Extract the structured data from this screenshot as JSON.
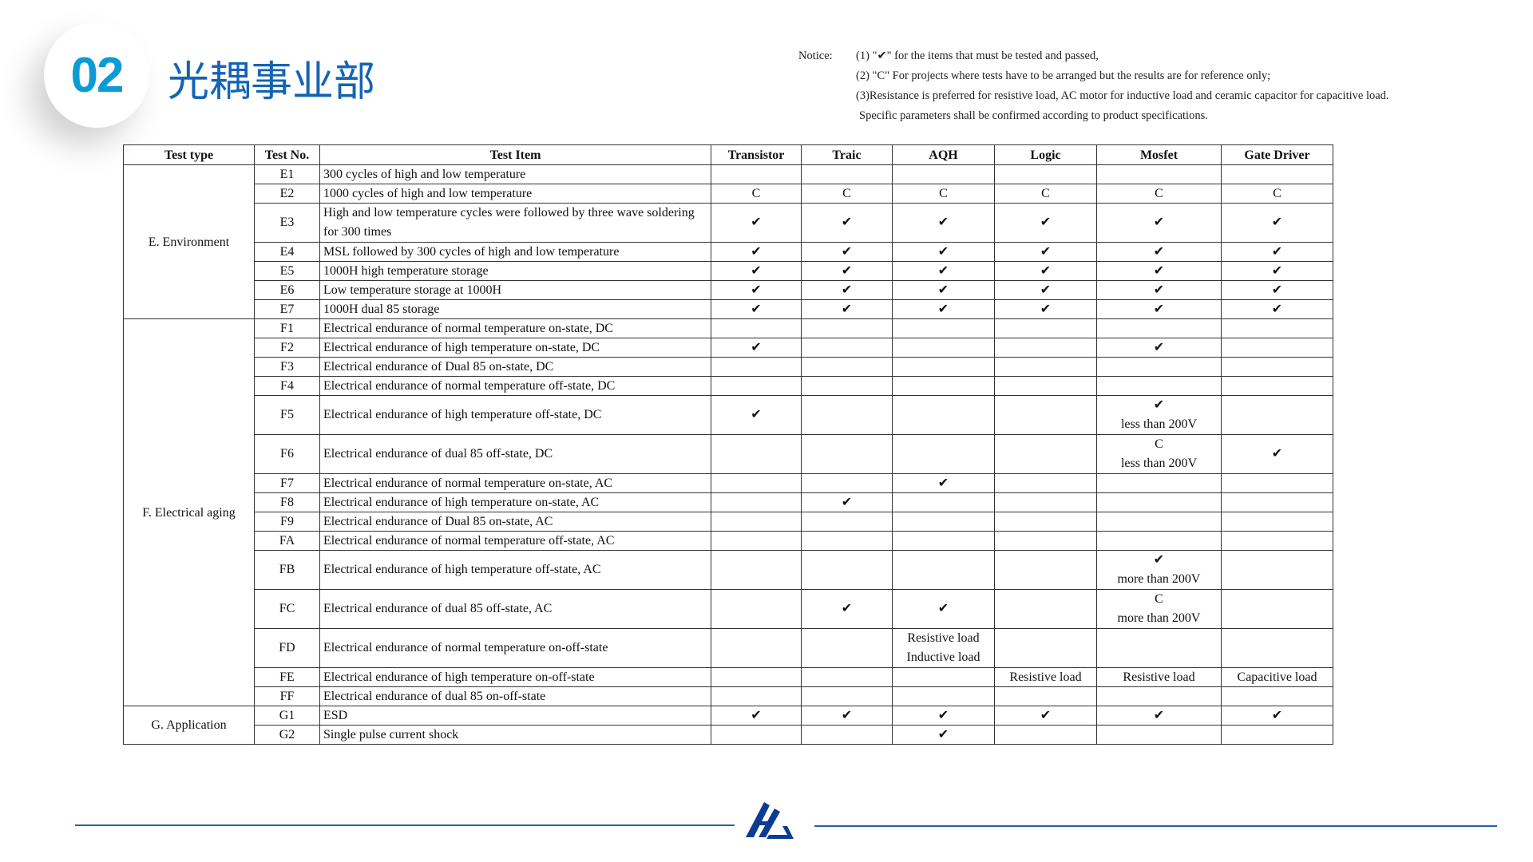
{
  "header": {
    "number": "02",
    "title": "光耦事业部"
  },
  "notice": {
    "label": "Notice:",
    "lines": [
      "(1) \"✔\" for the items that must be tested and passed,",
      "(2) \"C\" For projects where tests have to be arranged but the results are for reference only;",
      "(3)Resistance is preferred for resistive load, AC motor for inductive load and ceramic capacitor for capacitive load.",
      "Specific parameters shall be confirmed according to product specifications."
    ]
  },
  "table": {
    "headers": [
      "Test type",
      "Test No.",
      "Test Item",
      "Transistor",
      "Traic",
      "AQH",
      "Logic",
      "Mosfet",
      "Gate Driver"
    ],
    "groups": [
      {
        "type": "E. Environment",
        "rows": [
          {
            "no": "E1",
            "item": "300 cycles of high and low temperature",
            "cells": [
              "",
              "",
              "",
              "",
              "",
              ""
            ]
          },
          {
            "no": "E2",
            "item": "1000 cycles of high and low temperature",
            "cells": [
              "C",
              "C",
              "C",
              "C",
              "C",
              "C"
            ]
          },
          {
            "no": "E3",
            "item": "High and low temperature cycles were followed by three wave soldering for 300 times",
            "tall": true,
            "cells": [
              "✔",
              "✔",
              "✔",
              "✔",
              "✔",
              "✔"
            ]
          },
          {
            "no": "E4",
            "item": "MSL followed by 300 cycles of high and low temperature",
            "cells": [
              "✔",
              "✔",
              "✔",
              "✔",
              "✔",
              "✔"
            ]
          },
          {
            "no": "E5",
            "item": "1000H high temperature storage",
            "cells": [
              "✔",
              "✔",
              "✔",
              "✔",
              "✔",
              "✔"
            ]
          },
          {
            "no": "E6",
            "item": "Low temperature storage at 1000H",
            "cells": [
              "✔",
              "✔",
              "✔",
              "✔",
              "✔",
              "✔"
            ]
          },
          {
            "no": "E7",
            "item": "1000H dual 85 storage",
            "cells": [
              "✔",
              "✔",
              "✔",
              "✔",
              "✔",
              "✔"
            ]
          }
        ]
      },
      {
        "type": "F. Electrical aging",
        "rows": [
          {
            "no": "F1",
            "item": "Electrical endurance of normal temperature on-state, DC",
            "cells": [
              "",
              "",
              "",
              "",
              "",
              ""
            ]
          },
          {
            "no": "F2",
            "item": "Electrical endurance of high temperature on-state, DC",
            "cells": [
              "✔",
              "",
              "",
              "",
              "✔",
              ""
            ]
          },
          {
            "no": "F3",
            "item": "Electrical endurance of Dual 85 on-state, DC",
            "cells": [
              "",
              "",
              "",
              "",
              "",
              ""
            ]
          },
          {
            "no": "F4",
            "item": "Electrical endurance of normal temperature off-state, DC",
            "cells": [
              "",
              "",
              "",
              "",
              "",
              ""
            ]
          },
          {
            "no": "F5",
            "item": "Electrical endurance of high temperature off-state, DC",
            "tall": true,
            "cells": [
              "✔",
              "",
              "",
              "",
              "✔\nless than 200V",
              ""
            ]
          },
          {
            "no": "F6",
            "item": "Electrical endurance of dual 85 off-state, DC",
            "tall": true,
            "cells": [
              "",
              "",
              "",
              "",
              "C\nless than 200V",
              "✔"
            ]
          },
          {
            "no": "F7",
            "item": "Electrical endurance of normal temperature on-state, AC",
            "cells": [
              "",
              "",
              "✔",
              "",
              "",
              ""
            ]
          },
          {
            "no": "F8",
            "item": "Electrical endurance of high temperature on-state, AC",
            "cells": [
              "",
              "✔",
              "",
              "",
              "",
              ""
            ]
          },
          {
            "no": "F9",
            "item": "Electrical endurance of Dual 85 on-state, AC",
            "cells": [
              "",
              "",
              "",
              "",
              "",
              ""
            ]
          },
          {
            "no": "FA",
            "item": "Electrical endurance of normal temperature off-state, AC",
            "cells": [
              "",
              "",
              "",
              "",
              "",
              ""
            ]
          },
          {
            "no": "FB",
            "item": "Electrical endurance of high temperature off-state, AC",
            "tall": true,
            "cells": [
              "",
              "",
              "",
              "",
              "✔\nmore than 200V",
              ""
            ]
          },
          {
            "no": "FC",
            "item": "Electrical endurance of dual 85 off-state, AC",
            "tall": true,
            "cells": [
              "",
              "✔",
              "✔",
              "",
              "C\nmore than 200V",
              ""
            ]
          },
          {
            "no": "FD",
            "item": "Electrical endurance of normal temperature on-off-state",
            "tall": true,
            "cells": [
              "",
              "",
              "Resistive load\nInductive load",
              "",
              "",
              ""
            ]
          },
          {
            "no": "FE",
            "item": "Electrical endurance of high temperature on-off-state",
            "cells": [
              "",
              "",
              "",
              "Resistive load",
              "Resistive load",
              "Capacitive load"
            ]
          },
          {
            "no": "FF",
            "item": "Electrical endurance of dual 85 on-off-state",
            "cells": [
              "",
              "",
              "",
              "",
              "",
              ""
            ]
          }
        ]
      },
      {
        "type": "G. Application",
        "rows": [
          {
            "no": "G1",
            "item": "ESD",
            "cells": [
              "✔",
              "✔",
              "✔",
              "✔",
              "✔",
              "✔"
            ]
          },
          {
            "no": "G2",
            "item": "Single pulse current shock",
            "cells": [
              "",
              "",
              "✔",
              "",
              "",
              ""
            ]
          }
        ]
      }
    ]
  },
  "colors": {
    "number": "#0e9ad6",
    "title": "#1464b4",
    "footer_line": "#2a5ea8",
    "logo": "#0b3c94"
  },
  "logo": {
    "text": "HL"
  }
}
